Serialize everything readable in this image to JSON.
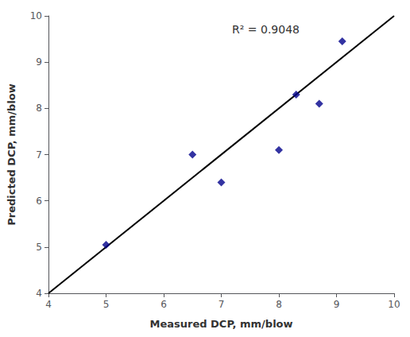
{
  "chart_data": {
    "type": "scatter",
    "xlabel": "Measured DCP, mm/blow",
    "ylabel": "Predicted DCP, mm/blow",
    "series": [
      {
        "type": "line",
        "x": [
          4,
          10
        ],
        "values": [
          4,
          10
        ],
        "color": "black"
      },
      {
        "type": "scatter",
        "x": [
          5.0,
          6.5,
          7.0,
          8.0,
          8.3,
          8.7,
          9.1
        ],
        "values": [
          5.05,
          7.0,
          6.4,
          7.1,
          8.3,
          8.1,
          9.45
        ],
        "color": "#00008B",
        "marker": "diamond"
      }
    ],
    "annotation": "R² = 0.9048",
    "xlim": [
      4,
      10
    ],
    "ylim": [
      4,
      10
    ],
    "xticks": [
      4,
      5,
      6,
      7,
      8,
      9,
      10
    ],
    "yticks": [
      4,
      5,
      6,
      7,
      8,
      9,
      10
    ],
    "grid": false
  }
}
